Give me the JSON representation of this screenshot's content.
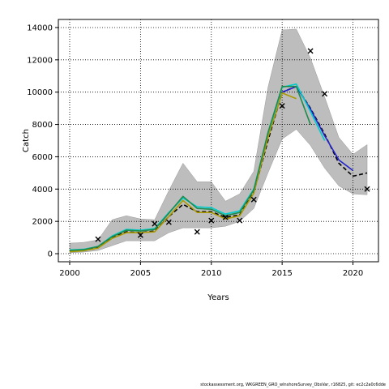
{
  "chart_data": {
    "type": "line",
    "title": "",
    "xlabel": "Years",
    "ylabel": "Catch",
    "xlim": [
      1999.2,
      2021.8
    ],
    "ylim": [
      -500,
      14500
    ],
    "xticks": [
      2000,
      2005,
      2010,
      2015,
      2020
    ],
    "yticks": [
      0,
      2000,
      4000,
      6000,
      8000,
      10000,
      12000,
      14000
    ],
    "grid": true,
    "band": {
      "x": [
        2000,
        2001,
        2002,
        2003,
        2004,
        2005,
        2006,
        2007,
        2008,
        2009,
        2010,
        2011,
        2012,
        2013,
        2014,
        2015,
        2016,
        2017,
        2018,
        2019,
        2020,
        2021
      ],
      "upper": [
        650,
        700,
        850,
        2100,
        2350,
        2150,
        2100,
        3900,
        5600,
        4450,
        4450,
        3250,
        3700,
        5100,
        10300,
        13850,
        13900,
        12100,
        9700,
        7200,
        6150,
        6750
      ],
      "lower": [
        50,
        100,
        200,
        500,
        800,
        800,
        800,
        1300,
        1600,
        1600,
        1600,
        1700,
        2000,
        2800,
        5000,
        7100,
        7700,
        6700,
        5300,
        4200,
        3700,
        3650
      ]
    },
    "series": [
      {
        "color": "#000000",
        "dashed": true,
        "x": [
          2000,
          2001,
          2002,
          2003,
          2004,
          2005,
          2006,
          2007,
          2008,
          2009,
          2010,
          2011,
          2012,
          2013,
          2014,
          2015,
          2016,
          2017,
          2018,
          2019,
          2020,
          2021
        ],
        "values": [
          200,
          250,
          400,
          1000,
          1350,
          1300,
          1400,
          2300,
          3050,
          2600,
          2600,
          2250,
          2400,
          3800,
          7000,
          10000,
          10350,
          9000,
          7400,
          5600,
          4800,
          5000
        ]
      },
      {
        "color": "#2222cc",
        "dashed": false,
        "x": [
          2015,
          2016,
          2017,
          2018,
          2019,
          2020
        ],
        "values": [
          10000,
          10350,
          8950,
          7300,
          5800,
          5150
        ]
      },
      {
        "color": "#00cccc",
        "dashed": false,
        "x": [
          2000,
          2001,
          2002,
          2003,
          2004,
          2005,
          2006,
          2007,
          2008,
          2009,
          2010,
          2011,
          2012,
          2013,
          2014,
          2015,
          2016,
          2017,
          2018
        ],
        "values": [
          230,
          280,
          450,
          1100,
          1500,
          1450,
          1550,
          2550,
          3450,
          2900,
          2850,
          2450,
          2650,
          4000,
          7400,
          10300,
          10500,
          8800,
          7000
        ]
      },
      {
        "color": "#aa9900",
        "dashed": false,
        "x": [
          2000,
          2001,
          2002,
          2003,
          2004,
          2005,
          2006,
          2007,
          2008,
          2009,
          2010,
          2011,
          2012,
          2013,
          2014,
          2015,
          2016
        ],
        "values": [
          120,
          180,
          350,
          950,
          1300,
          1300,
          1350,
          2300,
          3300,
          2550,
          2550,
          2150,
          2350,
          3750,
          7200,
          9950,
          9600
        ]
      },
      {
        "color": "#1f8a4d",
        "dashed": false,
        "x": [
          2000,
          2001,
          2002,
          2003,
          2004,
          2005,
          2006,
          2007,
          2008,
          2009,
          2010,
          2011,
          2012,
          2013,
          2014,
          2015,
          2016,
          2017
        ],
        "values": [
          200,
          250,
          450,
          1050,
          1450,
          1400,
          1500,
          2500,
          3550,
          2800,
          2750,
          2350,
          2550,
          3950,
          7500,
          10350,
          10350,
          8000
        ]
      }
    ],
    "observations": {
      "x": [
        2002,
        2005,
        2006,
        2007,
        2009,
        2010,
        2011,
        2012,
        2013,
        2015,
        2017,
        2018,
        2021
      ],
      "values": [
        900,
        1150,
        1850,
        1950,
        1350,
        2050,
        2250,
        2050,
        3350,
        9150,
        12550,
        9900,
        4000
      ]
    }
  },
  "footnote": "stockassessment.org, WKGREEN_GRO_wInshoreSurvey_ObsVar, r16825, git: ec2c2a0c6dde"
}
